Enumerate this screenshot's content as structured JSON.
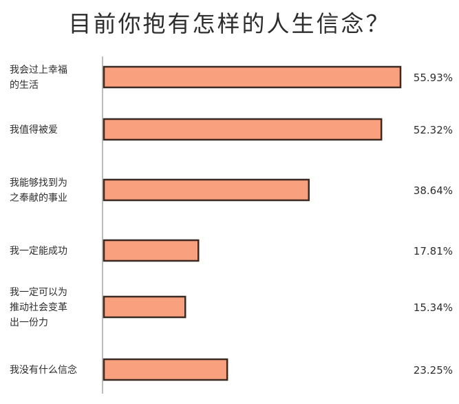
{
  "chart_data": {
    "type": "bar",
    "orientation": "horizontal",
    "title": "目前你抱有怎样的人生信念？",
    "xlabel": "",
    "ylabel": "",
    "categories": [
      [
        "我会过上幸福",
        "的生活"
      ],
      [
        "我值得被爱"
      ],
      [
        "我能够找到为",
        "之奉献的事业"
      ],
      [
        "我一定能成功"
      ],
      [
        "我一定可以为",
        "推动社会变革",
        "出一份力"
      ],
      [
        "我没有什么信念"
      ]
    ],
    "values": [
      55.93,
      52.32,
      38.64,
      17.81,
      15.34,
      23.25
    ],
    "value_labels": [
      "55.93%",
      "52.32%",
      "38.64%",
      "17.81%",
      "15.34%",
      "23.25%"
    ],
    "grid": false,
    "legend": "none",
    "colors": {
      "bar_fill": "#f9a07e",
      "bar_stroke": "#3a2a22",
      "axis": "#bdbdbd",
      "text": "#2d2d2d"
    }
  }
}
